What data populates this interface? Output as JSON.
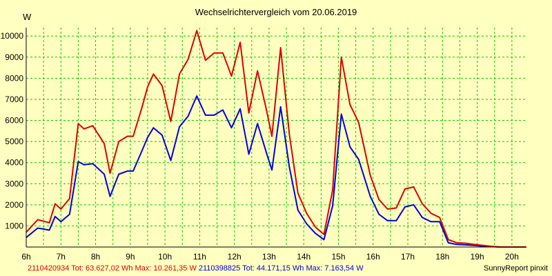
{
  "header": {
    "title": "Wechselrichtervergleich vom 20.06.2019",
    "unit": "W"
  },
  "footer": {
    "series1_text": "2110420934 Tot: 63.627,02 Wh Max: 10.261,35 W",
    "series2_text": "2110398825 Tot: 44.171,15 Wh Max: 7.163,54 W",
    "credit": "SunnyReport pinxit"
  },
  "colors": {
    "background": "#ffffc0",
    "grid": "#00cc00",
    "series1": "#dd0000",
    "series2": "#0000dd"
  },
  "chart_data": {
    "type": "line",
    "title": "Wechselrichtervergleich vom 20.06.2019",
    "ylabel": "W",
    "xlabel": "",
    "ylim": [
      0,
      10400
    ],
    "xlim": [
      6.0,
      20.4
    ],
    "grid": true,
    "x_ticks": [
      6,
      7,
      8,
      9,
      10,
      11,
      12,
      13,
      14,
      15,
      16,
      17,
      18,
      19,
      20
    ],
    "x_tick_labels": [
      "6h",
      "7h",
      "8h",
      "9h",
      "10h",
      "11h",
      "12h",
      "13h",
      "14h",
      "15h",
      "16h",
      "17h",
      "18h",
      "19h",
      "20h"
    ],
    "y_ticks": [
      1000,
      2000,
      3000,
      4000,
      5000,
      6000,
      7000,
      8000,
      9000,
      10000
    ],
    "y_tick_labels": [
      "1000",
      "2000",
      "3000",
      "4000",
      "5000",
      "6000",
      "7000",
      "8000",
      "9000",
      "10000"
    ],
    "x": [
      6.0,
      6.333,
      6.667,
      6.833,
      7.0,
      7.25,
      7.5,
      7.667,
      7.917,
      8.25,
      8.417,
      8.667,
      8.917,
      9.083,
      9.333,
      9.5,
      9.667,
      9.917,
      10.167,
      10.417,
      10.667,
      10.917,
      11.167,
      11.417,
      11.667,
      11.917,
      12.167,
      12.417,
      12.667,
      12.917,
      13.083,
      13.333,
      13.583,
      13.833,
      14.083,
      14.333,
      14.583,
      14.833,
      15.083,
      15.333,
      15.583,
      15.917,
      16.167,
      16.417,
      16.667,
      16.917,
      17.167,
      17.417,
      17.667,
      17.917,
      18.167,
      18.417,
      18.667,
      18.917,
      19.167,
      19.417,
      19.667,
      19.917,
      20.167,
      20.417
    ],
    "series": [
      {
        "name": "2110420934",
        "values": [
          700,
          1300,
          1150,
          2050,
          1800,
          2300,
          5850,
          5600,
          5750,
          4900,
          3500,
          5000,
          5250,
          5250,
          6600,
          7600,
          8200,
          7650,
          5950,
          8200,
          8900,
          10260,
          8850,
          9200,
          9200,
          8100,
          9700,
          6350,
          8350,
          6550,
          5250,
          9450,
          5350,
          2550,
          1600,
          950,
          600,
          2700,
          9000,
          6750,
          5900,
          3400,
          2250,
          1800,
          1850,
          2750,
          2850,
          2050,
          1600,
          1400,
          350,
          200,
          180,
          120,
          80,
          30,
          0,
          0,
          0,
          0
        ]
      },
      {
        "name": "2110398825",
        "values": [
          450,
          900,
          800,
          1450,
          1200,
          1550,
          4050,
          3900,
          3950,
          3450,
          2400,
          3450,
          3600,
          3600,
          4550,
          5200,
          5650,
          5300,
          4100,
          5700,
          6200,
          7160,
          6250,
          6250,
          6500,
          5650,
          6550,
          4400,
          5850,
          4500,
          3650,
          6650,
          3800,
          1750,
          1100,
          650,
          350,
          1950,
          6300,
          4750,
          4150,
          2400,
          1550,
          1250,
          1250,
          1900,
          2000,
          1400,
          1200,
          1200,
          200,
          120,
          100,
          80,
          40,
          20,
          0,
          0,
          0,
          0
        ]
      }
    ]
  }
}
